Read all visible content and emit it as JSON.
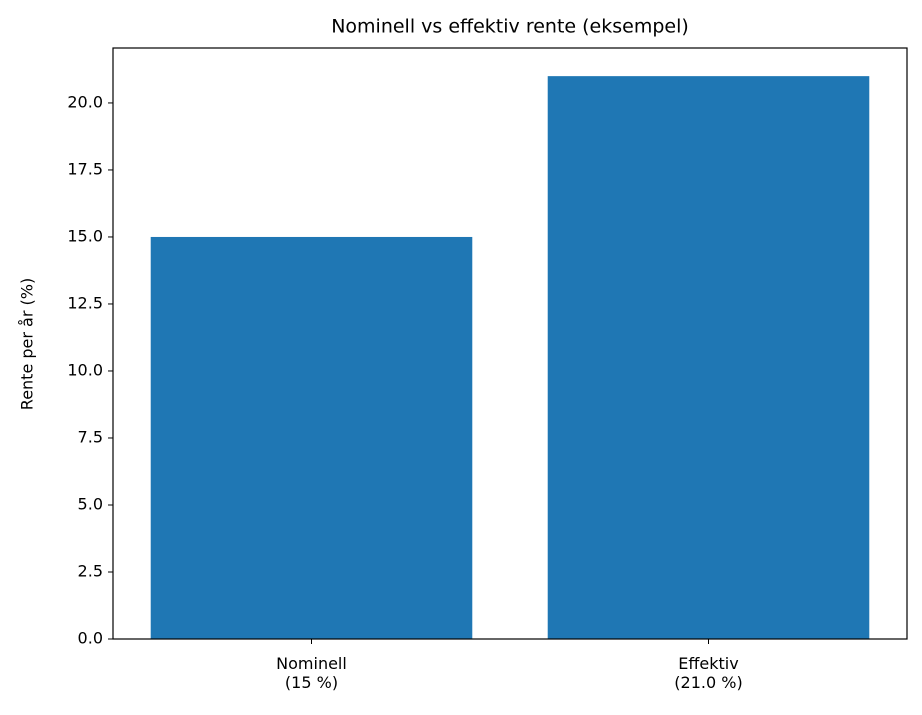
{
  "chart_data": {
    "type": "bar",
    "title": "Nominell vs effektiv rente (eksempel)",
    "y_label": "Rente per år (%)",
    "categories": [
      "Nominell\n(15 %)",
      "Effektiv\n(21.0 %)"
    ],
    "values": [
      15,
      21
    ],
    "color": "#1f77b4",
    "ylim": [
      0,
      22.05
    ],
    "yticks": [
      {
        "value": 0,
        "label": "0.0"
      },
      2.5,
      {
        "value": 5,
        "label": "5.0"
      },
      7.5,
      {
        "value": 10,
        "label": "10.0"
      },
      12.5,
      {
        "value": 15,
        "label": "15.0"
      },
      17.5,
      {
        "value": 20,
        "label": "20.0"
      }
    ],
    "grid": false
  }
}
